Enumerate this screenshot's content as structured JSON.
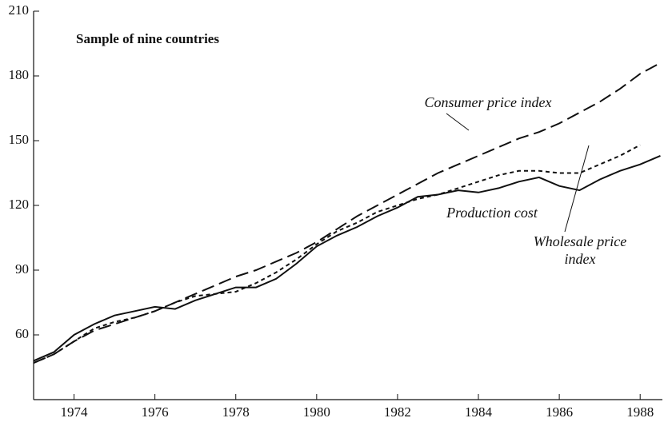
{
  "chart_data": {
    "type": "line",
    "annotations": [
      "Sample of nine countries"
    ],
    "x": [
      1973,
      1973.5,
      1974,
      1974.5,
      1975,
      1975.5,
      1976,
      1976.5,
      1977,
      1977.5,
      1978,
      1978.5,
      1979,
      1979.5,
      1980,
      1980.5,
      1981,
      1981.5,
      1982,
      1982.5,
      1983,
      1983.5,
      1984,
      1984.5,
      1985,
      1985.5,
      1986,
      1986.5,
      1987,
      1987.5,
      1988,
      1988.5
    ],
    "series": [
      {
        "name": "Consumer price index",
        "color": "#111111",
        "dash": "16 7",
        "values": [
          47,
          51,
          57,
          62,
          65,
          68,
          71,
          75,
          79,
          83,
          87,
          90,
          94,
          98,
          103,
          109,
          115,
          120,
          125,
          130,
          135,
          139,
          143,
          147,
          151,
          154,
          158,
          163,
          168,
          174,
          181,
          186
        ]
      },
      {
        "name": "Production cost",
        "color": "#111111",
        "dash": "",
        "values": [
          48,
          52,
          60,
          65,
          69,
          71,
          73,
          72,
          76,
          79,
          82,
          82,
          86,
          93,
          101,
          106,
          110,
          115,
          119,
          124,
          125,
          127,
          126,
          128,
          131,
          133,
          129,
          127,
          132,
          136,
          139,
          143
        ]
      },
      {
        "name": "Wholesale price index",
        "color": "#111111",
        "dash": "5 4",
        "values": [
          47,
          51,
          57,
          63,
          66,
          68,
          71,
          75,
          78,
          79,
          80,
          84,
          89,
          95,
          102,
          108,
          112,
          117,
          120,
          123,
          125,
          128,
          131,
          134,
          136,
          136,
          135,
          135,
          139,
          143,
          148,
          null
        ]
      }
    ],
    "xlim": [
      1973,
      1988.55
    ],
    "xticks": [
      1974,
      1976,
      1978,
      1980,
      1982,
      1984,
      1986,
      1988
    ],
    "ylim": [
      30,
      210
    ],
    "yticks": [
      60,
      90,
      120,
      150,
      180,
      210
    ]
  }
}
